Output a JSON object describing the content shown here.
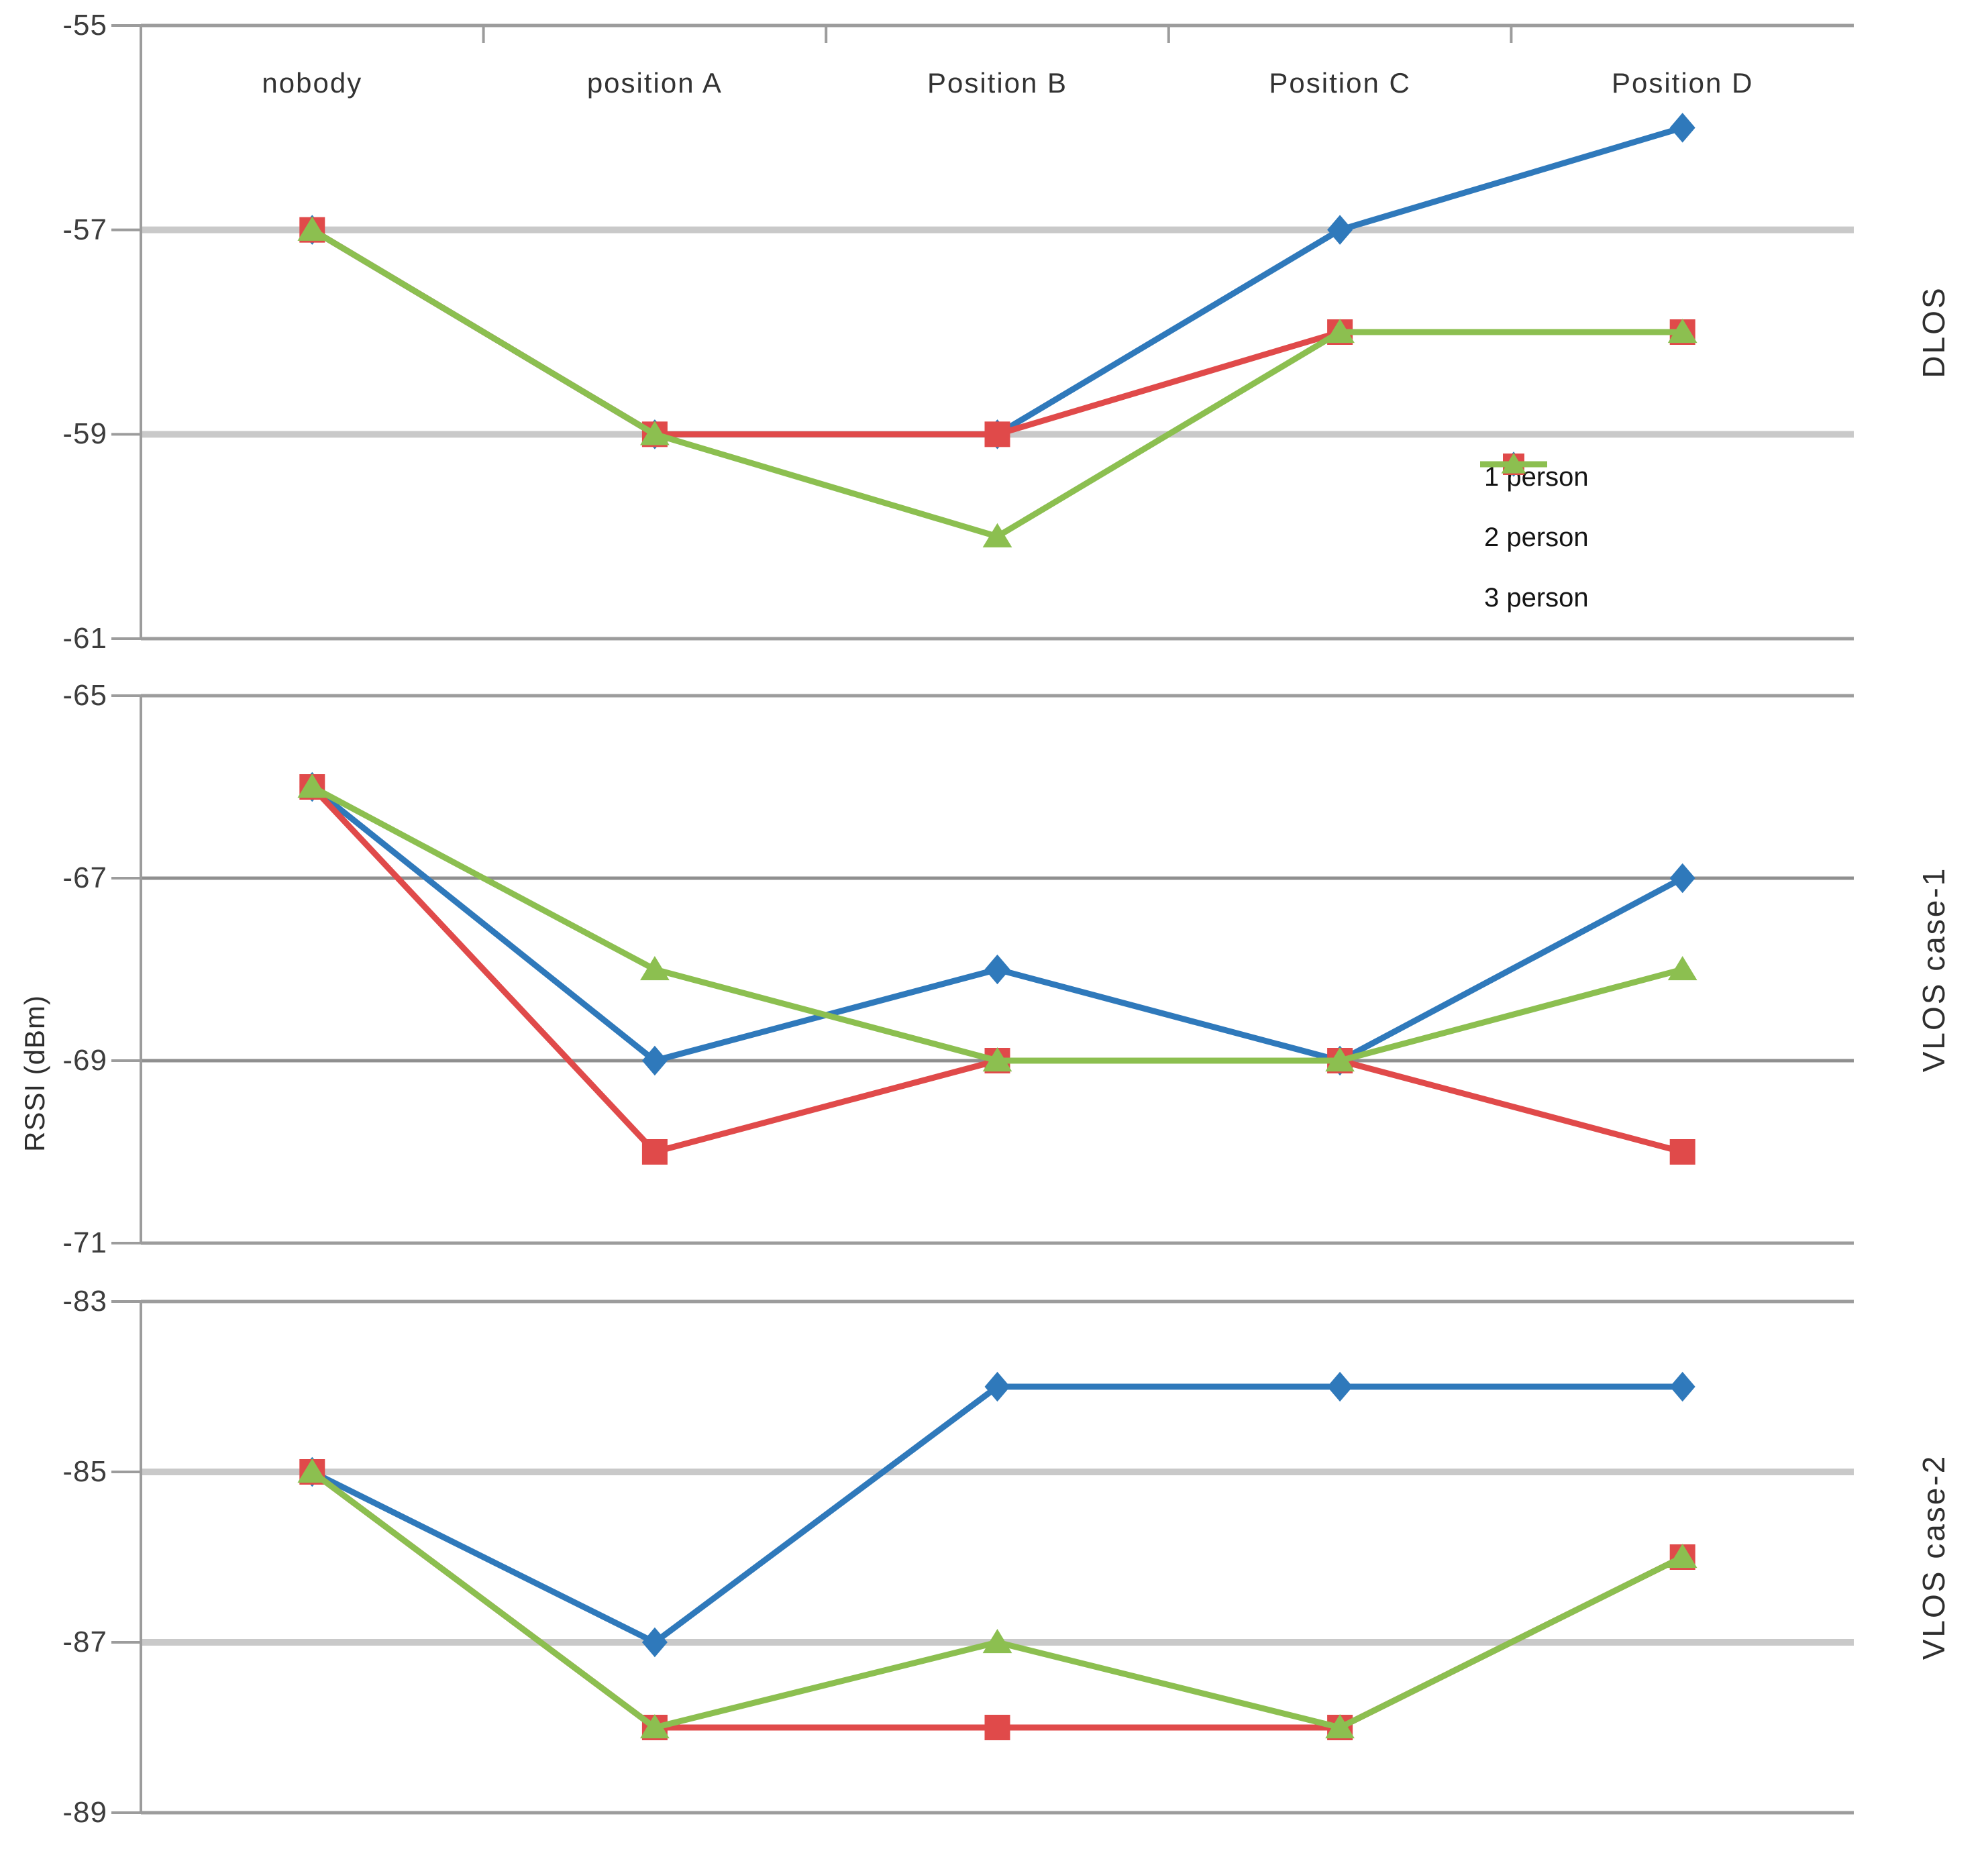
{
  "figure": {
    "y_axis_title": "RSSI (dBm)",
    "categories": [
      "nobody",
      "position A",
      "Position B",
      "Position C",
      "Position D"
    ],
    "colors": {
      "person1": "#2F79BB",
      "person2": "#E04A4A",
      "person3": "#8CBF50"
    },
    "legend": {
      "position": "inside-top-right-of-first-chart",
      "items": [
        {
          "label": "1 person",
          "marker": "diamond",
          "color": "#2F79BB"
        },
        {
          "label": "2 person",
          "marker": "square",
          "color": "#E04A4A"
        },
        {
          "label": "3 person",
          "marker": "triangle",
          "color": "#8CBF50"
        }
      ]
    }
  },
  "chart_data": [
    {
      "type": "line",
      "right_label": "DLOS",
      "categories": [
        "nobody",
        "position A",
        "Position B",
        "Position C",
        "Position D"
      ],
      "ylabel": "RSSI (dBm)",
      "ylim": [
        -61,
        -55
      ],
      "yticks": [
        -55,
        -57,
        -59,
        -61
      ],
      "grid": true,
      "series": [
        {
          "name": "1 person",
          "marker": "diamond",
          "color": "#2F79BB",
          "values": [
            -57,
            -59,
            -59,
            -57,
            -56
          ]
        },
        {
          "name": "2 person",
          "marker": "square",
          "color": "#E04A4A",
          "values": [
            -57,
            -59,
            -59,
            -58,
            -58
          ]
        },
        {
          "name": "3 person",
          "marker": "triangle",
          "color": "#8CBF50",
          "values": [
            -57,
            -59,
            -60,
            -58,
            -58
          ]
        }
      ]
    },
    {
      "type": "line",
      "right_label": "VLOS case-1",
      "categories": [
        "nobody",
        "position A",
        "Position B",
        "Position C",
        "Position D"
      ],
      "ylabel": "RSSI (dBm)",
      "ylim": [
        -71,
        -65
      ],
      "yticks": [
        -65,
        -67,
        -69,
        -71
      ],
      "grid": true,
      "series": [
        {
          "name": "1 person",
          "marker": "diamond",
          "color": "#2F79BB",
          "values": [
            -66,
            -69,
            -68,
            -69,
            -67
          ]
        },
        {
          "name": "2 person",
          "marker": "square",
          "color": "#E04A4A",
          "values": [
            -66,
            -70,
            -69,
            -69,
            -70
          ]
        },
        {
          "name": "3 person",
          "marker": "triangle",
          "color": "#8CBF50",
          "values": [
            -66,
            -68,
            -69,
            -69,
            -68
          ]
        }
      ]
    },
    {
      "type": "line",
      "right_label": "VLOS case-2",
      "categories": [
        "nobody",
        "position A",
        "Position B",
        "Position C",
        "Position D"
      ],
      "ylabel": "RSSI (dBm)",
      "ylim": [
        -89,
        -83
      ],
      "yticks": [
        -83,
        -85,
        -87,
        -89
      ],
      "grid": true,
      "series": [
        {
          "name": "1 person",
          "marker": "diamond",
          "color": "#2F79BB",
          "values": [
            -85,
            -87,
            -84,
            -84,
            -84
          ]
        },
        {
          "name": "2 person",
          "marker": "square",
          "color": "#E04A4A",
          "values": [
            -85,
            -88,
            -88,
            -88,
            -86
          ]
        },
        {
          "name": "3 person",
          "marker": "triangle",
          "color": "#8CBF50",
          "values": [
            -85,
            -88,
            -87,
            -88,
            -86
          ]
        }
      ]
    }
  ]
}
